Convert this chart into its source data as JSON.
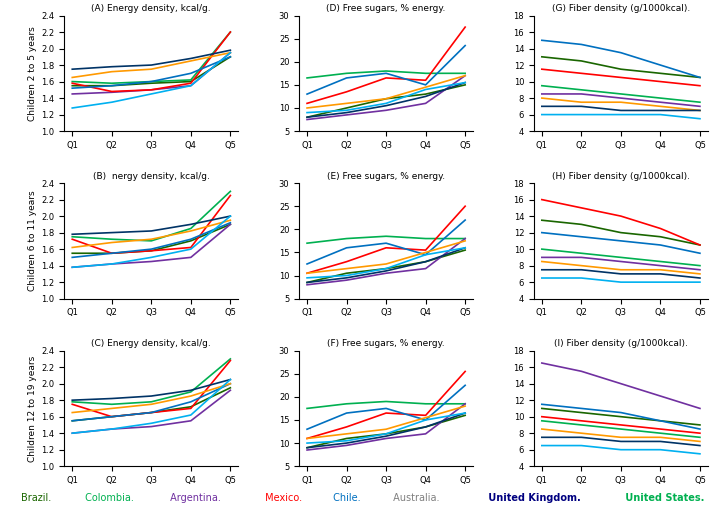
{
  "countries": [
    "Brazil",
    "Colombia",
    "Argentina",
    "Mexico",
    "Chile",
    "Australia",
    "United Kingdom",
    "United States"
  ],
  "colors": [
    "#1a6600",
    "#00b050",
    "#7030a0",
    "#ff0000",
    "#0070c0",
    "#ff9900",
    "#003366",
    "#00b0f0"
  ],
  "legend_colors": [
    "#1a6600",
    "#00b050",
    "#7030a0",
    "#ff0000",
    "#0070c0",
    "#808080",
    "#000080",
    "#00b050"
  ],
  "x_labels": [
    "Q1",
    "Q2",
    "Q3",
    "Q4",
    "Q5"
  ],
  "row_labels": [
    "Children 2 to 5 years",
    "Children 6 to 11 years",
    "Children 12 to 19 years"
  ],
  "titles": [
    [
      "(A) Energy density, kcal/g.",
      "(D) Free sugars, % energy.",
      "(G) Fiber density (g/1000kcal)."
    ],
    [
      "(B)  nergy density, kcal/g.",
      "(E) Free sugars, % energy.",
      "(H) Fiber density (g/1000kcal)."
    ],
    [
      "(C) Energy density, kcal/g.",
      "(F) Free sugars, % energy.",
      "(I) Fiber density (g/1000kcal)."
    ]
  ],
  "ylims": [
    [
      [
        1.0,
        2.4
      ],
      [
        5,
        30
      ],
      [
        4,
        18
      ]
    ],
    [
      [
        1.0,
        2.4
      ],
      [
        5,
        30
      ],
      [
        4,
        18
      ]
    ],
    [
      [
        1.0,
        2.4
      ],
      [
        5,
        30
      ],
      [
        4,
        18
      ]
    ]
  ],
  "yticks": [
    [
      [
        1.0,
        1.2,
        1.4,
        1.6,
        1.8,
        2.0,
        2.2,
        2.4
      ],
      [
        5,
        10,
        15,
        20,
        25,
        30
      ],
      [
        4,
        6,
        8,
        10,
        12,
        14,
        16,
        18
      ]
    ],
    [
      [
        1.0,
        1.2,
        1.4,
        1.6,
        1.8,
        2.0,
        2.2,
        2.4
      ],
      [
        5,
        10,
        15,
        20,
        25,
        30
      ],
      [
        4,
        6,
        8,
        10,
        12,
        14,
        16,
        18
      ]
    ],
    [
      [
        1.0,
        1.2,
        1.4,
        1.6,
        1.8,
        2.0,
        2.2,
        2.4
      ],
      [
        5,
        10,
        15,
        20,
        25,
        30
      ],
      [
        4,
        6,
        8,
        10,
        12,
        14,
        16,
        18
      ]
    ]
  ],
  "data": {
    "energy_density": {
      "row0": [
        [
          1.55,
          1.55,
          1.58,
          1.6,
          1.9
        ],
        [
          1.6,
          1.58,
          1.6,
          1.62,
          2.2
        ],
        [
          1.45,
          1.47,
          1.5,
          1.55,
          1.95
        ],
        [
          1.58,
          1.48,
          1.5,
          1.58,
          2.2
        ],
        [
          1.52,
          1.55,
          1.6,
          1.7,
          1.9
        ],
        [
          1.65,
          1.72,
          1.75,
          1.85,
          1.95
        ],
        [
          1.75,
          1.78,
          1.8,
          1.88,
          1.98
        ],
        [
          1.28,
          1.35,
          1.45,
          1.55,
          1.95
        ]
      ],
      "row1": [
        [
          1.55,
          1.55,
          1.58,
          1.7,
          1.9
        ],
        [
          1.75,
          1.72,
          1.7,
          1.85,
          2.3
        ],
        [
          1.38,
          1.42,
          1.45,
          1.5,
          1.9
        ],
        [
          1.72,
          1.55,
          1.58,
          1.62,
          2.25
        ],
        [
          1.5,
          1.55,
          1.6,
          1.72,
          1.92
        ],
        [
          1.62,
          1.68,
          1.72,
          1.82,
          1.95
        ],
        [
          1.78,
          1.8,
          1.82,
          1.9,
          2.0
        ],
        [
          1.38,
          1.42,
          1.5,
          1.6,
          2.0
        ]
      ],
      "row2": [
        [
          1.55,
          1.6,
          1.65,
          1.72,
          1.95
        ],
        [
          1.78,
          1.75,
          1.78,
          1.9,
          2.3
        ],
        [
          1.4,
          1.45,
          1.48,
          1.55,
          1.92
        ],
        [
          1.75,
          1.6,
          1.65,
          1.7,
          2.28
        ],
        [
          1.55,
          1.6,
          1.65,
          1.78,
          2.0
        ],
        [
          1.65,
          1.7,
          1.75,
          1.85,
          2.0
        ],
        [
          1.8,
          1.82,
          1.85,
          1.92,
          2.05
        ],
        [
          1.4,
          1.45,
          1.52,
          1.62,
          2.05
        ]
      ]
    },
    "free_sugars": {
      "row0": [
        [
          8.0,
          10.0,
          12.0,
          13.0,
          15.0
        ],
        [
          16.5,
          17.5,
          18.0,
          17.5,
          17.5
        ],
        [
          7.5,
          8.5,
          9.5,
          11.0,
          17.0
        ],
        [
          11.0,
          13.5,
          16.5,
          16.0,
          27.5
        ],
        [
          13.0,
          16.5,
          17.5,
          15.0,
          23.5
        ],
        [
          10.0,
          11.0,
          12.0,
          14.5,
          17.0
        ],
        [
          8.0,
          9.0,
          10.5,
          12.5,
          15.5
        ],
        [
          9.0,
          9.5,
          11.0,
          14.0,
          15.5
        ]
      ],
      "row1": [
        [
          8.5,
          10.5,
          11.5,
          13.0,
          15.5
        ],
        [
          17.0,
          18.0,
          18.5,
          18.0,
          18.0
        ],
        [
          8.0,
          9.0,
          10.5,
          11.5,
          18.0
        ],
        [
          10.5,
          13.0,
          16.0,
          15.5,
          25.0
        ],
        [
          12.5,
          16.0,
          17.0,
          14.5,
          22.0
        ],
        [
          10.5,
          11.5,
          12.5,
          15.0,
          17.5
        ],
        [
          8.5,
          9.5,
          11.0,
          13.0,
          16.0
        ],
        [
          9.5,
          10.0,
          11.5,
          14.5,
          16.0
        ]
      ],
      "row2": [
        [
          9.0,
          11.0,
          12.0,
          13.5,
          16.0
        ],
        [
          17.5,
          18.5,
          19.0,
          18.5,
          18.5
        ],
        [
          8.5,
          9.5,
          11.0,
          12.0,
          18.5
        ],
        [
          11.0,
          13.5,
          16.5,
          16.0,
          25.5
        ],
        [
          13.0,
          16.5,
          17.5,
          15.0,
          22.5
        ],
        [
          11.0,
          12.0,
          13.0,
          15.5,
          18.0
        ],
        [
          9.0,
          10.0,
          11.5,
          13.5,
          16.5
        ],
        [
          10.0,
          10.5,
          12.0,
          15.0,
          16.5
        ]
      ]
    },
    "fiber_density": {
      "row0": [
        [
          13.0,
          12.5,
          11.5,
          11.0,
          10.5
        ],
        [
          9.5,
          9.0,
          8.5,
          8.0,
          7.5
        ],
        [
          8.5,
          8.5,
          8.0,
          7.5,
          7.0
        ],
        [
          11.5,
          11.0,
          10.5,
          10.0,
          9.5
        ],
        [
          15.0,
          14.5,
          13.5,
          12.0,
          10.5
        ],
        [
          8.0,
          7.5,
          7.5,
          7.0,
          6.5
        ],
        [
          7.0,
          7.0,
          6.5,
          6.5,
          6.5
        ],
        [
          6.0,
          6.0,
          6.0,
          6.0,
          5.5
        ]
      ],
      "row1": [
        [
          13.5,
          13.0,
          12.0,
          11.5,
          10.5
        ],
        [
          10.0,
          9.5,
          9.0,
          8.5,
          8.0
        ],
        [
          9.0,
          9.0,
          8.5,
          8.0,
          7.5
        ],
        [
          16.0,
          15.0,
          14.0,
          12.5,
          10.5
        ],
        [
          12.0,
          11.5,
          11.0,
          10.5,
          9.5
        ],
        [
          8.5,
          8.0,
          7.5,
          7.5,
          7.0
        ],
        [
          7.5,
          7.5,
          7.0,
          7.0,
          6.5
        ],
        [
          6.5,
          6.5,
          6.0,
          6.0,
          6.0
        ]
      ],
      "row2": [
        [
          11.0,
          10.5,
          10.0,
          9.5,
          9.0
        ],
        [
          9.5,
          9.0,
          8.5,
          8.0,
          7.5
        ],
        [
          16.5,
          15.5,
          14.0,
          12.5,
          11.0
        ],
        [
          10.0,
          9.5,
          9.0,
          8.5,
          8.0
        ],
        [
          11.5,
          11.0,
          10.5,
          9.5,
          8.5
        ],
        [
          8.5,
          8.0,
          7.5,
          7.5,
          7.0
        ],
        [
          7.5,
          7.5,
          7.0,
          7.0,
          6.5
        ],
        [
          6.5,
          6.5,
          6.0,
          6.0,
          5.5
        ]
      ]
    }
  },
  "legend": [
    {
      "label": "Brazil.",
      "color": "#1a6600",
      "bold": false
    },
    {
      "label": "Colombia.",
      "color": "#00b050",
      "bold": false
    },
    {
      "label": "Argentina.",
      "color": "#7030a0",
      "bold": false
    },
    {
      "label": "Mexico.",
      "color": "#ff0000",
      "bold": false
    },
    {
      "label": "Chile.",
      "color": "#0070c0",
      "bold": false
    },
    {
      "label": "Australia.",
      "color": "#808080",
      "bold": false
    },
    {
      "label": "United Kingdom.",
      "color": "#000080",
      "bold": true
    },
    {
      "label": "United States.",
      "color": "#00b050",
      "bold": true
    }
  ]
}
